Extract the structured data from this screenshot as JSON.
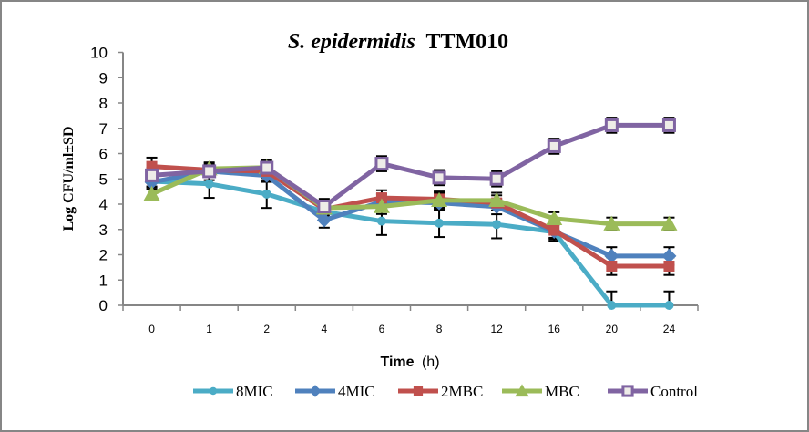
{
  "chart_data": {
    "type": "line",
    "title_italic": "S. epidermidis",
    "title_rest": "TTM010",
    "xlabel_main": "Time",
    "xlabel_unit": "(h)",
    "ylabel": "Log CFU/ml±SD",
    "ylim": [
      0,
      10
    ],
    "yticks": [
      0,
      1,
      2,
      3,
      4,
      5,
      6,
      7,
      8,
      9,
      10
    ],
    "categories": [
      "0",
      "1",
      "2",
      "4",
      "6",
      "8",
      "12",
      "16",
      "20",
      "24"
    ],
    "grid": false,
    "legend_position": "bottom",
    "series": [
      {
        "name": "8MIC",
        "color": "#4BACC6",
        "marker": "circle",
        "values": [
          4.9,
          4.8,
          4.4,
          3.7,
          3.33,
          3.25,
          3.2,
          2.9,
          0,
          0
        ],
        "errors": [
          0.2,
          0.55,
          0.55,
          0.35,
          0.55,
          0.55,
          0.55,
          0.35,
          0.55,
          0.55
        ]
      },
      {
        "name": "4MIC",
        "color": "#4F81BD",
        "marker": "diamond",
        "values": [
          4.87,
          5.3,
          5.13,
          3.37,
          4.1,
          4.05,
          3.9,
          2.92,
          1.95,
          1.95
        ],
        "errors": [
          0.2,
          0.2,
          0.25,
          0.3,
          0.3,
          0.3,
          0.3,
          0.3,
          0.35,
          0.35
        ]
      },
      {
        "name": "2MBC",
        "color": "#C0504D",
        "marker": "square",
        "values": [
          5.49,
          5.35,
          5.3,
          3.8,
          4.25,
          4.2,
          4.05,
          2.97,
          1.55,
          1.55
        ],
        "errors": [
          0.35,
          0.2,
          0.25,
          0.3,
          0.3,
          0.3,
          0.3,
          0.3,
          0.35,
          0.35
        ]
      },
      {
        "name": "MBC",
        "color": "#9BBB59",
        "marker": "triangle",
        "values": [
          4.4,
          5.4,
          5.45,
          3.85,
          3.91,
          4.15,
          4.15,
          3.43,
          3.22,
          3.22
        ],
        "errors": [
          0.2,
          0.2,
          0.2,
          0.3,
          0.3,
          0.3,
          0.3,
          0.25,
          0.25,
          0.25
        ]
      },
      {
        "name": "Control",
        "color": "#8064A2",
        "marker": "open-square",
        "values": [
          5.14,
          5.3,
          5.44,
          3.91,
          5.6,
          5.05,
          5.0,
          6.29,
          7.12,
          7.12
        ],
        "errors": [
          0.3,
          0.35,
          0.3,
          0.3,
          0.3,
          0.3,
          0.3,
          0.3,
          0.3,
          0.3
        ]
      }
    ]
  }
}
